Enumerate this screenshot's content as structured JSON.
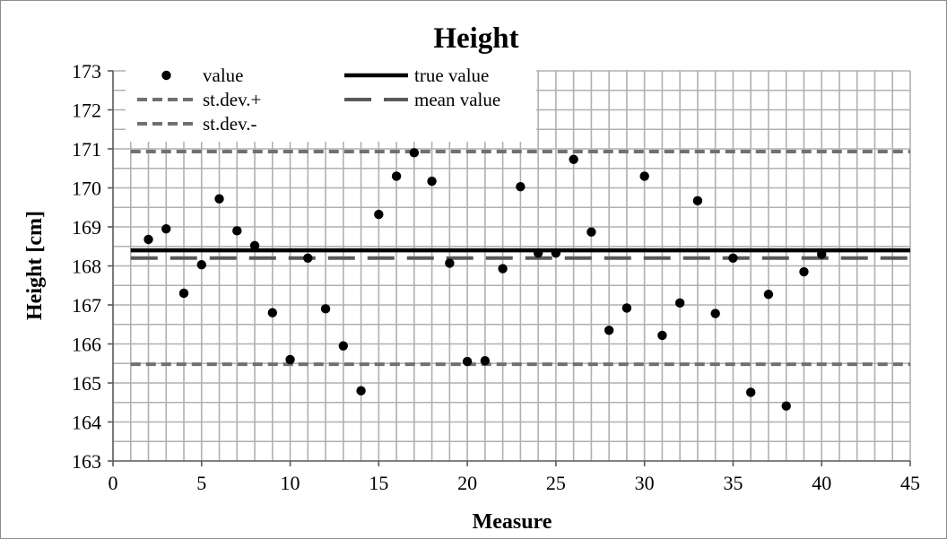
{
  "colors": {
    "grid": "#b0b0b0",
    "axis": "#595959",
    "point": "#000000",
    "true_value": "#000000",
    "mean_value": "#595959",
    "stdev": "#707070"
  },
  "chart_data": {
    "type": "scatter",
    "title": "Height",
    "xlabel": "Measure",
    "ylabel": "Height [cm]",
    "xlim": [
      0,
      45
    ],
    "ylim": [
      163,
      173
    ],
    "x_ticks": [
      0,
      5,
      10,
      15,
      20,
      25,
      30,
      35,
      40,
      45
    ],
    "y_ticks": [
      163,
      164,
      165,
      166,
      167,
      168,
      169,
      170,
      171,
      172,
      173
    ],
    "x_minor_step": 1,
    "y_minor_step": 0.5,
    "grid": true,
    "legend_position": "top-left",
    "legend": [
      "value",
      "true value",
      "st.dev.+",
      "mean value",
      "st.dev.-"
    ],
    "series": [
      {
        "name": "value",
        "type": "scatter",
        "x": [
          2,
          3,
          4,
          5,
          6,
          7,
          8,
          9,
          10,
          11,
          12,
          13,
          14,
          15,
          16,
          17,
          18,
          19,
          20,
          21,
          22,
          23,
          24,
          25,
          26,
          27,
          28,
          29,
          30,
          31,
          32,
          33,
          34,
          35,
          36,
          37,
          38,
          39,
          40
        ],
        "y": [
          168.68,
          168.95,
          167.3,
          168.03,
          169.72,
          168.9,
          168.52,
          166.8,
          165.6,
          168.2,
          166.9,
          165.95,
          164.8,
          169.32,
          170.3,
          170.9,
          170.17,
          168.07,
          165.55,
          165.57,
          167.93,
          170.03,
          168.33,
          168.33,
          170.73,
          168.87,
          166.35,
          166.92,
          170.3,
          166.22,
          167.05,
          169.67,
          166.78,
          168.2,
          164.76,
          167.27,
          164.41,
          167.85,
          168.3
        ]
      },
      {
        "name": "true value",
        "type": "line",
        "style": "solid",
        "x": [
          1,
          45
        ],
        "y": [
          168.4,
          168.4
        ]
      },
      {
        "name": "mean value",
        "type": "line",
        "style": "long-dash",
        "x": [
          1,
          45
        ],
        "y": [
          168.2,
          168.2
        ]
      },
      {
        "name": "st.dev.+",
        "type": "line",
        "style": "short-dash",
        "x": [
          1,
          45
        ],
        "y": [
          170.93,
          170.93
        ]
      },
      {
        "name": "st.dev.-",
        "type": "line",
        "style": "short-dash",
        "x": [
          1,
          45
        ],
        "y": [
          165.48,
          165.48
        ]
      }
    ]
  }
}
